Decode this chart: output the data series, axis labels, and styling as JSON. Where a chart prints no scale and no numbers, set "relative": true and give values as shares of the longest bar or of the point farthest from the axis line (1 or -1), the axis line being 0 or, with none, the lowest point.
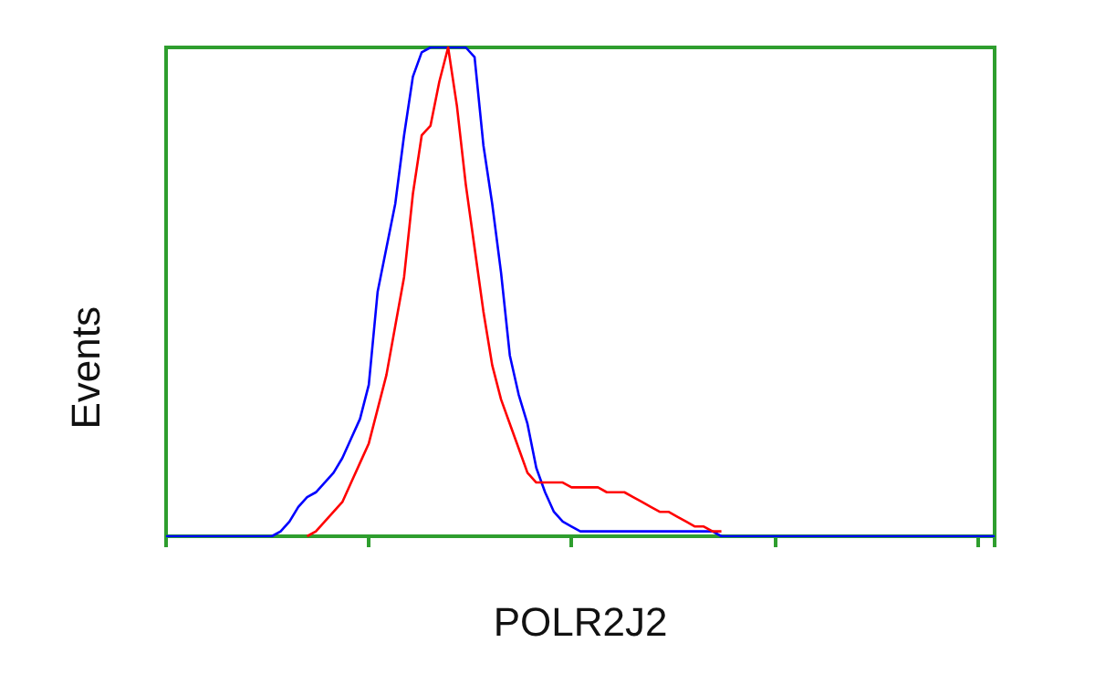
{
  "chart_data": {
    "type": "line",
    "xlabel": "POLR2J2",
    "ylabel": "Events",
    "relative": true,
    "marker": "none",
    "line_style": "solid",
    "categories": [
      null,
      null,
      null,
      null,
      null,
      null,
      null,
      null,
      null,
      null,
      null,
      null,
      null,
      null,
      null,
      null,
      null,
      null,
      null,
      null,
      null,
      null,
      null,
      null,
      null,
      null,
      null,
      null,
      null,
      null,
      null,
      null,
      null,
      null,
      null,
      null,
      null,
      null,
      null,
      null,
      null,
      null,
      null,
      null,
      null,
      null,
      null,
      null,
      null,
      null,
      null,
      null,
      null,
      null,
      null,
      null,
      null,
      null,
      null,
      null,
      null,
      null,
      null,
      null,
      null,
      null,
      null,
      null,
      null,
      null,
      null,
      null,
      null,
      null,
      null,
      null,
      null,
      null,
      null,
      null,
      null,
      null,
      null,
      null,
      null,
      null,
      null,
      null,
      null,
      null,
      null,
      null,
      null,
      null,
      null
    ],
    "series": [
      {
        "color": "#0000ff",
        "values": [
          0,
          0,
          0,
          0,
          0,
          0,
          0,
          0,
          0,
          0,
          0,
          0,
          0,
          0.01,
          0.03,
          0.06,
          0.08,
          0.09,
          0.11,
          0.13,
          0.16,
          0.2,
          0.24,
          0.31,
          0.5,
          0.59,
          0.68,
          0.82,
          0.94,
          0.99,
          1,
          1,
          1,
          1,
          1,
          0.98,
          0.8,
          0.68,
          0.54,
          0.37,
          0.29,
          0.23,
          0.14,
          0.09,
          0.05,
          0.03,
          0.02,
          0.01,
          0.01,
          0.01,
          0.01,
          0.01,
          0.01,
          0.01,
          0.01,
          0.01,
          0.01,
          0.01,
          0.01,
          0.01,
          0.01,
          0.01,
          0.01,
          0,
          0,
          0,
          0,
          0,
          0,
          0,
          0,
          0,
          0,
          0,
          0,
          0,
          0,
          0,
          0,
          0,
          0,
          0,
          0,
          0,
          0,
          0,
          0,
          0,
          0,
          0,
          0,
          0,
          0,
          0,
          0
        ]
      },
      {
        "color": "#ff0000",
        "values": [
          null,
          null,
          null,
          null,
          null,
          null,
          null,
          null,
          null,
          null,
          null,
          null,
          null,
          null,
          null,
          null,
          0,
          0.01,
          0.03,
          0.05,
          0.07,
          0.11,
          0.15,
          0.19,
          0.26,
          0.33,
          0.43,
          0.53,
          0.7,
          0.82,
          0.84,
          0.93,
          1,
          0.88,
          0.72,
          0.59,
          0.46,
          0.35,
          0.28,
          0.23,
          0.18,
          0.13,
          0.11,
          0.11,
          0.11,
          0.11,
          0.1,
          0.1,
          0.1,
          0.1,
          0.09,
          0.09,
          0.09,
          0.08,
          0.07,
          0.06,
          0.05,
          0.05,
          0.04,
          0.03,
          0.02,
          0.02,
          0.01,
          0.01,
          null,
          null,
          null,
          null,
          null,
          null,
          null,
          null,
          null,
          null,
          null,
          null,
          null,
          null,
          null,
          null,
          null,
          null,
          null,
          null,
          null,
          null,
          null,
          null,
          null,
          null,
          null,
          null,
          null,
          null,
          null
        ]
      }
    ]
  }
}
